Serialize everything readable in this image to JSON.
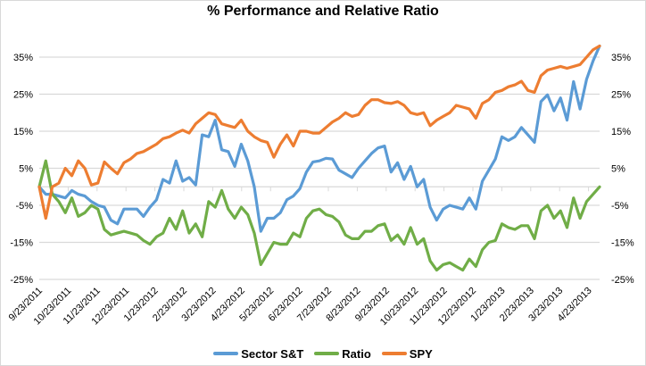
{
  "chart_data": {
    "type": "line",
    "title": "% Performance and Relative Ratio",
    "xlabel": "",
    "ylabel": "",
    "ylim": [
      -25,
      35
    ],
    "y_ticks": [
      "35%",
      "25%",
      "15%",
      "5%",
      "-5%",
      "-15%",
      "-25%"
    ],
    "y_tick_values": [
      35,
      25,
      15,
      5,
      -5,
      -15,
      -25
    ],
    "secondary_y_ticks": [
      "35%",
      "25%",
      "15%",
      "5%",
      "-5%",
      "-15%",
      "-25%"
    ],
    "x_tick_labels": [
      "9/23/2011",
      "10/23/2011",
      "11/23/2011",
      "12/23/2011",
      "1/23/2012",
      "2/23/2012",
      "3/23/2012",
      "4/23/2012",
      "5/23/2012",
      "6/23/2012",
      "7/23/2012",
      "8/23/2012",
      "9/23/2012",
      "10/23/2012",
      "11/23/2012",
      "12/23/2012",
      "1/23/2013",
      "2/23/2013",
      "3/23/2013",
      "4/23/2013"
    ],
    "x_frequency": "weekly",
    "x_start": "9/23/2011",
    "grid": true,
    "legend_position": "bottom",
    "series": [
      {
        "name": "Sector S&T",
        "color": "#5b9bd5",
        "values": [
          0,
          -2,
          -2,
          -2.5,
          -3,
          -1,
          -2,
          -2.5,
          -4,
          -5,
          -5.5,
          -9,
          -10,
          -6,
          -6,
          -6,
          -8,
          -5.5,
          -3.5,
          2,
          1,
          7,
          1.5,
          2.5,
          0.5,
          14,
          13.5,
          18,
          10,
          9.5,
          5.5,
          11.5,
          7,
          0,
          -12,
          -8.5,
          -8.5,
          -7,
          -3.5,
          -2.5,
          -0.5,
          4,
          6.7,
          7,
          7.7,
          7.5,
          4.5,
          3.5,
          2.5,
          5,
          7,
          9,
          10.5,
          11,
          4,
          6.5,
          2,
          5.5,
          0,
          2,
          -5.5,
          -9,
          -6,
          -5,
          -5.5,
          -6,
          -3,
          -6,
          1.5,
          4.5,
          7.5,
          13.5,
          12.5,
          13.5,
          16,
          14,
          12,
          23,
          24.8,
          20.5,
          24,
          18,
          28.4,
          21,
          29,
          34,
          38
        ]
      },
      {
        "name": "Ratio",
        "color": "#70ad47",
        "values": [
          0,
          7,
          -2,
          -4,
          -7,
          -3,
          -8,
          -7,
          -5,
          -6,
          -11.5,
          -13,
          -12.5,
          -12,
          -12.5,
          -13,
          -14.5,
          -15.5,
          -13.5,
          -12.5,
          -8.5,
          -11.5,
          -6.5,
          -12.5,
          -10,
          -13.5,
          -4,
          -5.5,
          -1,
          -6,
          -8.5,
          -5.5,
          -7.5,
          -12.5,
          -21,
          -18,
          -15,
          -15.5,
          -15.5,
          -12.5,
          -13.5,
          -8.5,
          -6.5,
          -6,
          -7.5,
          -8,
          -9.5,
          -13,
          -14,
          -14,
          -12,
          -12,
          -10.5,
          -10,
          -14.5,
          -13,
          -15.5,
          -11,
          -15.5,
          -14,
          -20,
          -22.5,
          -21,
          -20.5,
          -21.5,
          -22.5,
          -19.5,
          -21.5,
          -17,
          -15,
          -14.5,
          -10,
          -11,
          -11.5,
          -10.5,
          -10.5,
          -14,
          -6.5,
          -5,
          -8.5,
          -6.5,
          -11,
          -3,
          -8.5,
          -4,
          -2,
          0
        ]
      },
      {
        "name": "SPY",
        "color": "#ed7d31",
        "values": [
          0,
          -8.5,
          0,
          1,
          5,
          3,
          7,
          5,
          0.5,
          1,
          6.7,
          5,
          3.5,
          6.5,
          7.5,
          9,
          9.5,
          10.5,
          11.5,
          13,
          13.5,
          14.5,
          15.3,
          14.5,
          17,
          18.5,
          20,
          19.5,
          17,
          16.5,
          16,
          18,
          15,
          13.5,
          12.5,
          12,
          8,
          11.5,
          14,
          11,
          15,
          15,
          14.5,
          14.5,
          16,
          17.5,
          18.5,
          20,
          19,
          19.5,
          22,
          23.5,
          23.5,
          22.7,
          22.5,
          23,
          22,
          20,
          19.5,
          20,
          16.5,
          18,
          19,
          20,
          22,
          21.5,
          21,
          18.5,
          22.5,
          23.5,
          25.5,
          26,
          27,
          27.5,
          28.5,
          26,
          25.5,
          30,
          31.5,
          32,
          32.5,
          32,
          32.5,
          33,
          35,
          37,
          38
        ]
      }
    ]
  }
}
